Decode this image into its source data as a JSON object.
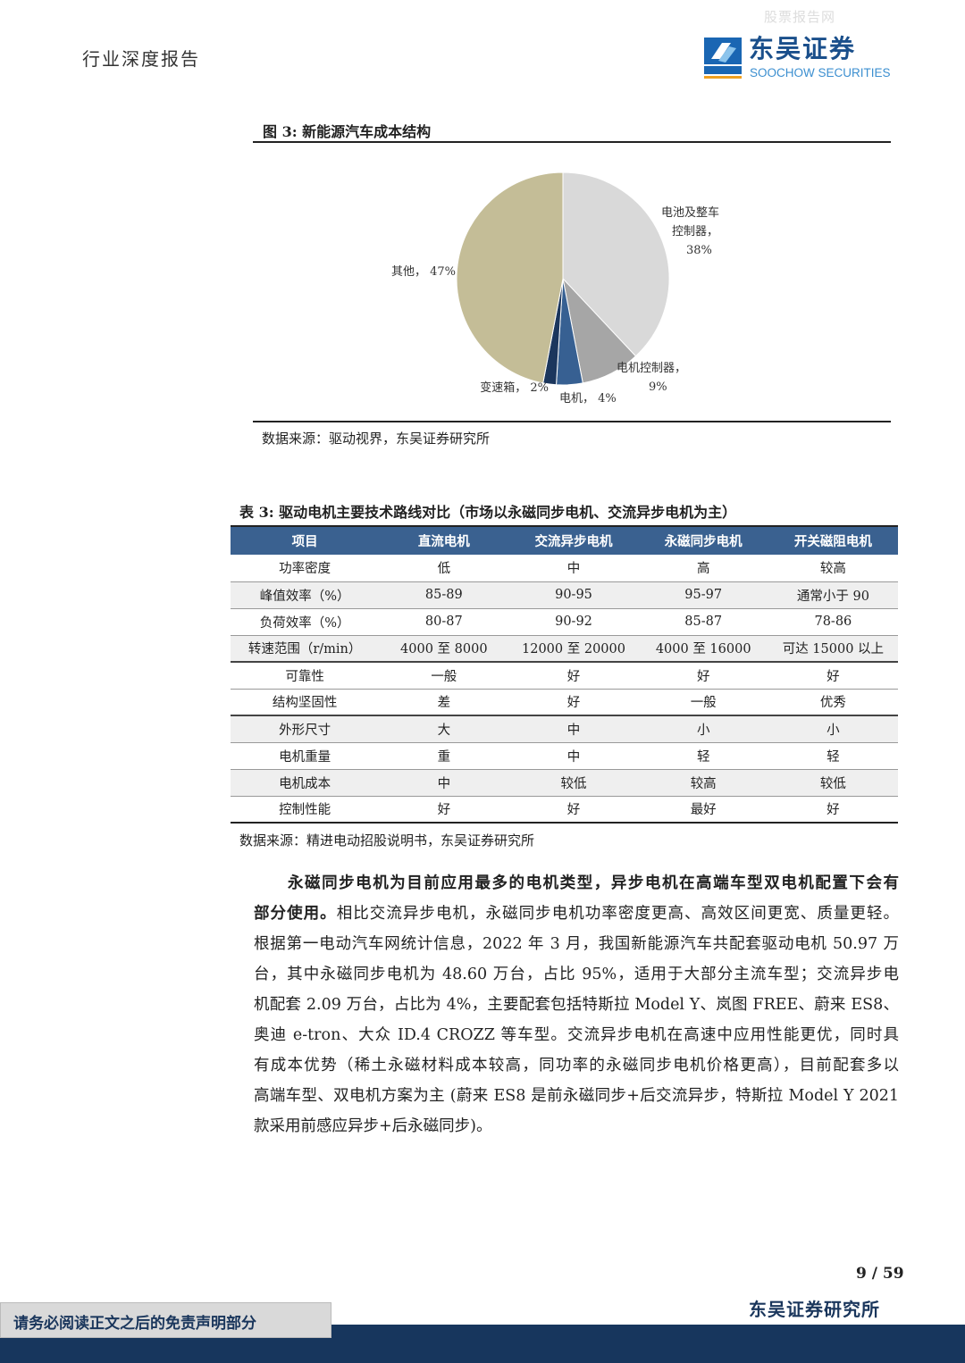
{
  "watermark": "股票报告网",
  "header": {
    "title": "行业深度报告",
    "logo_cn": "东吴证券",
    "logo_en": "SOOCHOW SECURITIES",
    "logo_mark": "SCS"
  },
  "figure": {
    "title": "图 3:  新能源汽车成本结构",
    "source": "数据来源：驱动视界，东吴证券研究所"
  },
  "chart_data": {
    "type": "pie",
    "title": "",
    "slices": [
      {
        "label": "电池及整车控制器",
        "label_lines": [
          "电池及整车",
          "控制器，",
          "38%"
        ],
        "value": 38,
        "color": "#d9d9d9"
      },
      {
        "label": "电机控制器",
        "label_lines": [
          "电机控制器，",
          "9%"
        ],
        "value": 9,
        "color": "#a6a6a6"
      },
      {
        "label": "电机",
        "label_lines": [
          "电机，  4%"
        ],
        "value": 4,
        "color": "#376092"
      },
      {
        "label": "变速箱",
        "label_lines": [
          "变速箱，  2%"
        ],
        "value": 2,
        "color": "#1b365d"
      },
      {
        "label": "其他",
        "label_lines": [
          "其他，  47%"
        ],
        "value": 47,
        "color": "#c4bd97"
      }
    ],
    "start": "12 o'clock",
    "direction": "clockwise"
  },
  "table": {
    "title": "表 3:  驱动电机主要技术路线对比（市场以永磁同步电机、交流异步电机为主）",
    "headers": [
      "项目",
      "直流电机",
      "交流异步电机",
      "永磁同步电机",
      "开关磁阻电机"
    ],
    "rows": [
      [
        "功率密度",
        "低",
        "中",
        "高",
        "较高"
      ],
      [
        "峰值效率（%）",
        "85-89",
        "90-95",
        "95-97",
        "通常小于 90"
      ],
      [
        "负荷效率（%）",
        "80-87",
        "90-92",
        "85-87",
        "78-86"
      ],
      [
        "转速范围（r/min）",
        "4000 至 8000",
        "12000 至 20000",
        "4000 至 16000",
        "可达 15000 以上"
      ],
      [
        "可靠性",
        "一般",
        "好",
        "好",
        "好"
      ],
      [
        "结构坚固性",
        "差",
        "好",
        "一般",
        "优秀"
      ],
      [
        "外形尺寸",
        "大",
        "中",
        "小",
        "小"
      ],
      [
        "电机重量",
        "重",
        "中",
        "轻",
        "轻"
      ],
      [
        "电机成本",
        "中",
        "较低",
        "较高",
        "较低"
      ],
      [
        "控制性能",
        "好",
        "好",
        "最好",
        "好"
      ]
    ],
    "source": "数据来源：精进电动招股说明书，东吴证券研究所"
  },
  "body": {
    "bold_lead_1": "永磁同步电机为目前应用最多的电机类型，异步电机在高端车型双电机配置下会有",
    "bold_lead_2": "部分使用。",
    "line2_rest": "相比交流异步电机，永磁同步电机功率密度更高、高效区间更宽、质量更轻。",
    "lines": [
      "根据第一电动汽车网统计信息，2022 年 3 月，我国新能源汽车共配套驱动电机 50.97 万",
      "台，其中永磁同步电机为 48.60 万台，占比 95%，适用于大部分主流车型；交流异步电",
      "机配套 2.09 万台，占比为 4%，主要配套包括特斯拉 Model Y、岚图 FREE、蔚来 ES8、",
      "奥迪 e-tron、大众 ID.4 CROZZ 等车型。交流异步电机在高速中应用性能更优，同时具",
      "有成本优势（稀土永磁材料成本较高，同功率的永磁同步电机价格更高），目前配套多以",
      "高端车型、双电机方案为主 (蔚来 ES8 是前永磁同步+后交流异步，特斯拉 Model Y 2021",
      "款采用前感应异步+后永磁同步)。"
    ]
  },
  "footer": {
    "page": "9 / 59",
    "org": "东吴证券研究所",
    "disclaimer": "请务必阅读正文之后的免责声明部分"
  }
}
